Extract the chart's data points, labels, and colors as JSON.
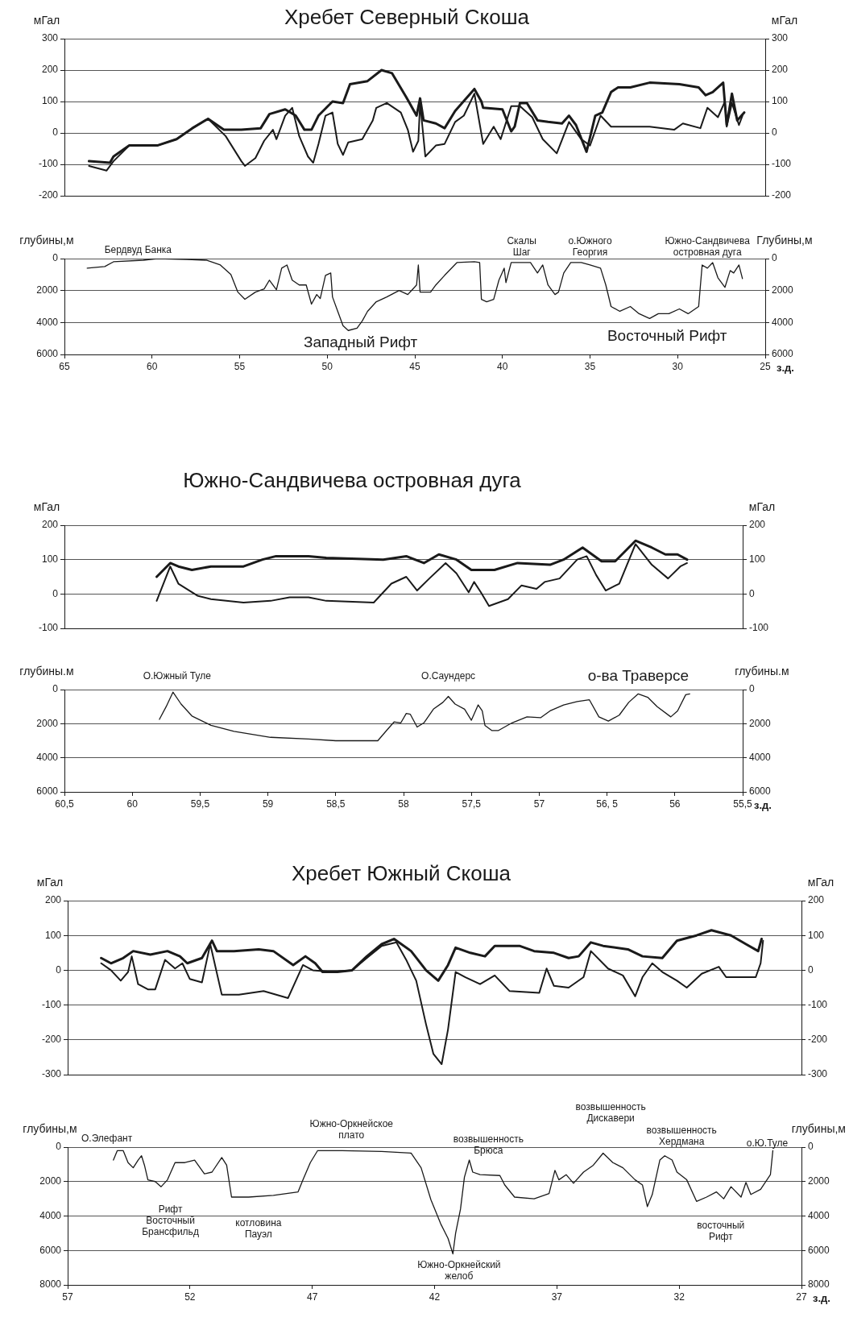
{
  "chart_data": [
    {
      "type": "line",
      "title": "Хребет Северный Скоша",
      "ylabel": "мГал",
      "y2label": "мГал",
      "xlim": [
        65,
        25
      ],
      "ylim": [
        -200,
        300
      ],
      "yticks": [
        -200,
        -100,
        0,
        100,
        200,
        300
      ],
      "y2lim": [
        -200,
        300
      ],
      "y2ticks": [
        -200,
        -100,
        0,
        100,
        200,
        300
      ],
      "grid": "y",
      "tick_labels": "y",
      "series": [
        {
          "color": "#1a1a1a",
          "x": [
            63.6,
            62.4,
            62.2,
            61.3,
            59.7,
            58.6,
            57.7,
            56.8,
            55.9,
            54.9,
            53.8,
            53.3,
            52.4,
            51.8,
            51.3,
            50.9,
            50.5,
            49.7,
            49.1,
            48.7,
            47.7,
            46.9,
            46.3,
            45.5,
            44.9,
            44.7,
            44.5,
            43.8,
            43.3,
            42.7,
            41.6,
            41.2,
            41.1,
            40.0,
            39.5,
            39.3,
            39.0,
            38.6,
            38.0,
            37.4,
            36.6,
            36.2,
            35.8,
            35.2,
            34.7,
            34.3,
            33.8,
            33.4,
            32.7,
            31.6,
            29.9,
            28.8,
            28.4,
            28.0,
            27.4,
            27.2,
            26.9,
            26.6,
            26.2
          ],
          "values": [
            -90,
            -95,
            -75,
            -40,
            -40,
            -20,
            15,
            45,
            10,
            10,
            15,
            60,
            75,
            55,
            10,
            10,
            55,
            100,
            95,
            155,
            165,
            200,
            190,
            115,
            55,
            110,
            40,
            30,
            15,
            70,
            140,
            100,
            80,
            75,
            5,
            20,
            95,
            95,
            40,
            35,
            30,
            55,
            25,
            -60,
            55,
            65,
            130,
            145,
            145,
            160,
            155,
            145,
            120,
            130,
            160,
            25,
            125,
            40,
            65
          ]
        },
        {
          "color": "#1a1a1a",
          "x": [
            63.6,
            62.6,
            62.2,
            61.3,
            59.7,
            58.6,
            57.7,
            56.8,
            55.8,
            54.9,
            54.7,
            54.1,
            53.6,
            53.1,
            52.9,
            52.4,
            52.0,
            51.6,
            51.1,
            50.8,
            50.5,
            50.1,
            49.7,
            49.4,
            49.1,
            48.8,
            48.0,
            47.4,
            47.2,
            46.6,
            45.8,
            45.4,
            45.1,
            44.8,
            44.7,
            44.4,
            43.8,
            43.3,
            42.7,
            42.2,
            41.6,
            41.1,
            40.5,
            40.1,
            39.5,
            39.0,
            38.3,
            37.7,
            36.9,
            36.2,
            35.5,
            35.0,
            34.4,
            33.8,
            32.7,
            31.6,
            30.2,
            29.7,
            28.7,
            28.3,
            27.7,
            27.3,
            27.2,
            26.9,
            26.5,
            26.3
          ],
          "values": [
            -105,
            -120,
            -90,
            -40,
            -40,
            -20,
            15,
            45,
            -10,
            -90,
            -105,
            -80,
            -25,
            10,
            -20,
            55,
            80,
            -10,
            -75,
            -95,
            -35,
            55,
            65,
            -35,
            -70,
            -30,
            -20,
            40,
            80,
            95,
            65,
            10,
            -60,
            -25,
            95,
            -75,
            -40,
            -35,
            35,
            55,
            125,
            -35,
            20,
            -20,
            85,
            85,
            50,
            -20,
            -65,
            35,
            -20,
            -40,
            55,
            20,
            20,
            20,
            10,
            30,
            15,
            80,
            50,
            100,
            20,
            95,
            25,
            55
          ]
        }
      ]
    },
    {
      "type": "line",
      "xlabel": "з.д.",
      "ylabel": "глубины,м",
      "y2label": "Глубины,м",
      "xlim": [
        65,
        25
      ],
      "xticks": [
        65,
        60,
        55,
        50,
        45,
        40,
        35,
        30,
        25
      ],
      "ylim": [
        6000,
        0
      ],
      "yticks": [
        0,
        2000,
        4000,
        6000
      ],
      "y2lim": [
        6000,
        0
      ],
      "y2ticks": [
        0,
        2000,
        4000,
        6000
      ],
      "grid": "y",
      "annotations": [
        "Бердвуд Банка",
        "Скалы\nШаг",
        "о.Южного\nГеоргия",
        "Южно-Сандвичева\nостровная дуга",
        "Западный Рифт",
        "Восточный Рифт"
      ],
      "series": [
        {
          "color": "#1a1a1a",
          "x": [
            63.7,
            62.7,
            62.2,
            60.5,
            59.7,
            58.0,
            56.9,
            56.1,
            55.5,
            55.1,
            54.7,
            54.1,
            53.6,
            53.3,
            52.9,
            52.6,
            52.3,
            52.0,
            51.6,
            51.2,
            50.9,
            50.6,
            50.4,
            50.1,
            49.8,
            49.7,
            49.4,
            49.1,
            48.8,
            48.3,
            48.0,
            47.7,
            47.2,
            46.6,
            45.9,
            45.4,
            44.9,
            44.8,
            44.7,
            44.1,
            43.8,
            43.3,
            42.6,
            41.6,
            41.3,
            41.2,
            40.9,
            40.5,
            40.2,
            39.9,
            39.8,
            39.5,
            38.4,
            38.0,
            37.7,
            37.4,
            37.0,
            36.8,
            36.5,
            36.1,
            35.5,
            35.0,
            34.4,
            34.1,
            33.8,
            33.3,
            32.7,
            32.2,
            31.6,
            31.1,
            30.5,
            29.9,
            29.4,
            28.8,
            28.6,
            28.3,
            28.0,
            27.7,
            27.3,
            27.0,
            26.8,
            26.5,
            26.3
          ],
          "values": [
            600,
            500,
            200,
            100,
            0,
            50,
            100,
            400,
            1000,
            2100,
            2550,
            2100,
            1900,
            1350,
            1950,
            600,
            400,
            1350,
            1650,
            1650,
            2850,
            2250,
            2500,
            1050,
            900,
            2400,
            3300,
            4200,
            4500,
            4350,
            3900,
            3300,
            2700,
            2400,
            2000,
            2250,
            1650,
            400,
            2100,
            2100,
            1650,
            1050,
            250,
            200,
            250,
            2550,
            2700,
            2550,
            1350,
            600,
            1500,
            250,
            250,
            900,
            400,
            1650,
            2250,
            2100,
            900,
            250,
            250,
            400,
            600,
            1650,
            3000,
            3300,
            3000,
            3450,
            3750,
            3450,
            3450,
            3150,
            3450,
            3000,
            400,
            600,
            250,
            1200,
            1800,
            750,
            900,
            400,
            1250
          ]
        }
      ]
    },
    {
      "type": "line",
      "title": "Южно-Сандвичева островная дуга",
      "ylabel": "мГал",
      "y2label": "мГал",
      "xlim": [
        60.5,
        55.5
      ],
      "ylim": [
        -100,
        200
      ],
      "yticks": [
        -100,
        0,
        100,
        200
      ],
      "y2lim": [
        -100,
        200
      ],
      "y2ticks": [
        -100,
        0,
        100,
        200
      ],
      "grid": "y",
      "tick_labels": "y",
      "series": [
        {
          "color": "#1a1a1a",
          "x": [
            59.82,
            59.72,
            59.66,
            59.56,
            59.42,
            59.18,
            59.04,
            58.94,
            58.7,
            58.57,
            58.15,
            57.98,
            57.85,
            57.74,
            57.61,
            57.5,
            57.33,
            57.16,
            56.92,
            56.82,
            56.68,
            56.54,
            56.44,
            56.29,
            56.17,
            56.07,
            55.98,
            55.91
          ],
          "values": [
            50,
            90,
            80,
            70,
            80,
            80,
            100,
            110,
            110,
            105,
            100,
            110,
            90,
            115,
            100,
            70,
            70,
            90,
            85,
            100,
            135,
            95,
            95,
            155,
            135,
            115,
            115,
            100
          ]
        },
        {
          "color": "#1a1a1a",
          "x": [
            59.82,
            59.72,
            59.66,
            59.52,
            59.42,
            59.18,
            58.98,
            58.84,
            58.7,
            58.57,
            58.22,
            58.09,
            57.98,
            57.9,
            57.81,
            57.69,
            57.61,
            57.52,
            57.48,
            57.43,
            57.37,
            57.23,
            57.13,
            57.02,
            56.96,
            56.85,
            56.72,
            56.65,
            56.58,
            56.51,
            56.41,
            56.29,
            56.17,
            56.05,
            55.96,
            55.91
          ],
          "values": [
            -20,
            80,
            30,
            -5,
            -15,
            -25,
            -20,
            -10,
            -10,
            -20,
            -25,
            30,
            50,
            10,
            45,
            90,
            60,
            5,
            35,
            5,
            -35,
            -15,
            25,
            15,
            35,
            45,
            100,
            110,
            55,
            10,
            30,
            145,
            85,
            45,
            80,
            90
          ]
        }
      ]
    },
    {
      "type": "line",
      "xlabel": "з.д.",
      "ylabel": "глубины.м",
      "y2label": "глубины.м",
      "xlim": [
        60.5,
        55.5
      ],
      "xticks": [
        {
          "value": 60.5,
          "label": "60,5"
        },
        60,
        {
          "value": 59.5,
          "label": "59,5"
        },
        59,
        {
          "value": 58.5,
          "label": "58,5"
        },
        58,
        {
          "value": 57.5,
          "label": "57,5"
        },
        57,
        {
          "value": 56.5,
          "label": "56, 5"
        },
        56,
        {
          "value": 55.5,
          "label": "55,5"
        }
      ],
      "ylim": [
        6000,
        0
      ],
      "yticks": [
        0,
        2000,
        4000,
        6000
      ],
      "y2lim": [
        6000,
        0
      ],
      "y2ticks": [
        0,
        2000,
        4000,
        6000
      ],
      "grid": "y",
      "annotations": [
        "О.Южный Туле",
        "О.Саундерс",
        "о-ва Траверсе"
      ],
      "series": [
        {
          "color": "#1a1a1a",
          "x": [
            59.8,
            59.75,
            59.7,
            59.64,
            59.56,
            59.42,
            59.25,
            58.98,
            58.7,
            58.5,
            58.19,
            58.12,
            58.07,
            58.02,
            57.98,
            57.95,
            57.9,
            57.85,
            57.78,
            57.71,
            57.67,
            57.62,
            57.55,
            57.5,
            57.45,
            57.42,
            57.4,
            57.35,
            57.3,
            57.2,
            57.09,
            56.99,
            56.92,
            56.82,
            56.72,
            56.63,
            56.56,
            56.49,
            56.41,
            56.34,
            56.27,
            56.2,
            56.13,
            56.03,
            55.98,
            55.92,
            55.89
          ],
          "values": [
            1750,
            1000,
            150,
            850,
            1550,
            2100,
            2450,
            2800,
            2900,
            3000,
            3000,
            2350,
            1900,
            1950,
            1400,
            1450,
            2200,
            1950,
            1150,
            750,
            400,
            850,
            1150,
            1800,
            900,
            1250,
            2100,
            2400,
            2400,
            1950,
            1600,
            1650,
            1250,
            900,
            700,
            600,
            1600,
            1850,
            1500,
            750,
            250,
            450,
            1000,
            1600,
            1250,
            300,
            250
          ]
        }
      ]
    },
    {
      "type": "line",
      "title": "Хребет Южный Скоша",
      "ylabel": "мГал",
      "y2label": "мГал",
      "xlim": [
        57,
        27
      ],
      "ylim": [
        -300,
        200
      ],
      "yticks": [
        -300,
        -200,
        -100,
        0,
        100,
        200
      ],
      "y2lim": [
        -300,
        200
      ],
      "y2ticks": [
        -300,
        -200,
        -100,
        0,
        100,
        200
      ],
      "grid": "y",
      "tick_labels": "y",
      "series": [
        {
          "color": "#1a1a1a",
          "x": [
            55.63,
            55.23,
            54.73,
            54.32,
            53.62,
            52.92,
            52.41,
            52.11,
            51.51,
            51.1,
            50.9,
            50.2,
            49.19,
            48.59,
            47.78,
            47.28,
            46.88,
            46.58,
            45.97,
            45.37,
            44.77,
            44.16,
            43.66,
            42.96,
            42.35,
            41.85,
            41.45,
            41.14,
            40.54,
            39.94,
            39.54,
            38.53,
            37.93,
            37.12,
            36.52,
            36.11,
            35.61,
            35.11,
            34.1,
            33.5,
            32.69,
            32.09,
            31.29,
            30.68,
            29.88,
            29.27,
            28.77,
            28.63
          ],
          "values": [
            35,
            20,
            35,
            55,
            45,
            55,
            40,
            20,
            35,
            85,
            55,
            55,
            60,
            55,
            15,
            40,
            20,
            -5,
            -5,
            0,
            40,
            75,
            90,
            55,
            0,
            -30,
            15,
            65,
            50,
            40,
            70,
            70,
            55,
            50,
            35,
            40,
            80,
            70,
            60,
            40,
            35,
            85,
            100,
            115,
            100,
            75,
            55,
            90
          ]
        },
        {
          "color": "#1a1a1a",
          "x": [
            55.63,
            55.23,
            54.83,
            54.53,
            54.38,
            54.12,
            53.72,
            53.42,
            53.02,
            52.61,
            52.31,
            52.01,
            51.51,
            51.17,
            50.7,
            50.0,
            48.99,
            47.99,
            47.38,
            46.98,
            46.17,
            45.37,
            44.77,
            44.16,
            43.56,
            43.16,
            42.75,
            42.35,
            42.05,
            41.71,
            41.45,
            41.14,
            40.74,
            40.14,
            39.54,
            38.93,
            37.72,
            37.42,
            37.12,
            36.52,
            35.91,
            35.61,
            34.91,
            34.3,
            33.8,
            33.5,
            33.1,
            32.69,
            32.09,
            31.69,
            31.08,
            30.38,
            30.08,
            28.87,
            28.67,
            28.57
          ],
          "values": [
            20,
            0,
            -30,
            -5,
            40,
            -40,
            -55,
            -55,
            30,
            5,
            20,
            -25,
            -35,
            75,
            -70,
            -70,
            -60,
            -80,
            15,
            0,
            -5,
            0,
            35,
            70,
            80,
            30,
            -30,
            -155,
            -240,
            -270,
            -170,
            -5,
            -20,
            -40,
            -15,
            -60,
            -65,
            5,
            -45,
            -50,
            -20,
            55,
            5,
            -15,
            -75,
            -20,
            20,
            -5,
            -30,
            -50,
            -10,
            10,
            -20,
            -20,
            20,
            85
          ]
        }
      ]
    },
    {
      "type": "line",
      "xlabel": "з.д.",
      "ylabel": "глубины,м",
      "y2label": "глубины,м",
      "xlim": [
        57,
        27
      ],
      "xticks": [
        57,
        52,
        47,
        42,
        37,
        32,
        27
      ],
      "ylim": [
        8000,
        0
      ],
      "yticks": [
        0,
        2000,
        4000,
        6000,
        8000
      ],
      "y2lim": [
        8000,
        0
      ],
      "y2ticks": [
        0,
        2000,
        4000,
        6000,
        8000
      ],
      "grid": "y",
      "annotations": [
        "О.Элефант",
        "Рифт\nВосточный\nБрансфильд",
        "котловина\nПауэл",
        "Южно-Оркнейское\nплато",
        "возвышенность\nБрюса",
        "Южно-Оркнейский\nжелоб",
        "возвышенность\nДискавери",
        "возвышенность\nХердмана",
        "восточный\nРифт",
        "о.Ю.Туле"
      ],
      "series": [
        {
          "color": "#1a1a1a",
          "x": [
            55.13,
            54.97,
            54.73,
            54.53,
            54.32,
            54.12,
            53.98,
            53.86,
            53.72,
            53.42,
            53.18,
            52.92,
            52.61,
            52.21,
            51.81,
            51.41,
            51.1,
            50.7,
            50.5,
            50.3,
            49.6,
            48.59,
            47.58,
            47.38,
            47.08,
            46.78,
            45.77,
            44.16,
            42.96,
            42.55,
            42.15,
            41.75,
            41.45,
            41.25,
            41.14,
            40.94,
            40.78,
            40.58,
            40.44,
            40.14,
            39.33,
            39.13,
            38.73,
            37.93,
            37.32,
            37.08,
            36.92,
            36.62,
            36.32,
            35.91,
            35.51,
            35.11,
            34.71,
            34.3,
            33.8,
            33.5,
            33.3,
            33.1,
            32.79,
            32.59,
            32.29,
            32.09,
            31.69,
            31.29,
            30.88,
            30.48,
            30.18,
            29.88,
            29.47,
            29.27,
            29.07,
            28.67,
            28.27,
            28.17
          ],
          "values": [
            750,
            200,
            200,
            900,
            1200,
            750,
            500,
            1050,
            1900,
            2000,
            2300,
            1900,
            900,
            900,
            750,
            1550,
            1450,
            600,
            1050,
            2900,
            2900,
            2800,
            2600,
            1900,
            900,
            200,
            200,
            250,
            350,
            1200,
            3050,
            4450,
            5300,
            6200,
            5000,
            3600,
            1750,
            750,
            1450,
            1600,
            1650,
            2200,
            2900,
            3000,
            2700,
            1350,
            1900,
            1600,
            2100,
            1450,
            1050,
            350,
            900,
            1200,
            1900,
            2200,
            3450,
            2750,
            750,
            500,
            750,
            1450,
            1900,
            3150,
            2900,
            2600,
            3000,
            2300,
            2900,
            2050,
            2750,
            2450,
            1600,
            200
          ]
        }
      ]
    }
  ]
}
